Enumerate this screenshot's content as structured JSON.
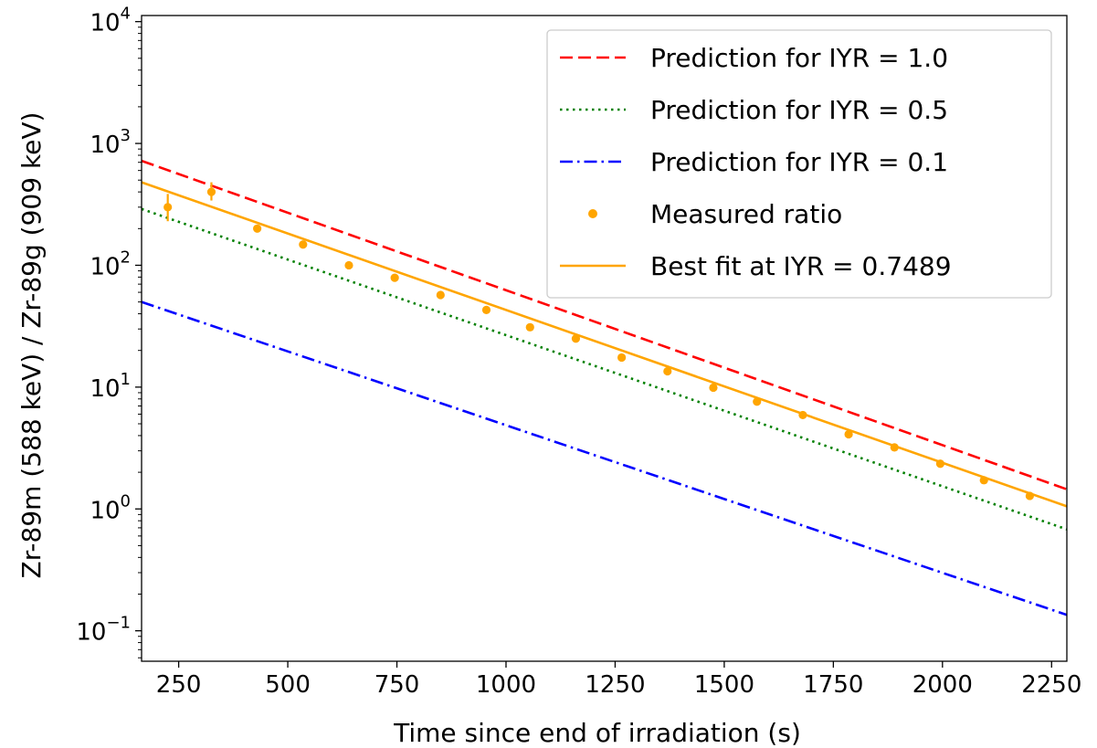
{
  "chart_data": {
    "type": "line",
    "title": "",
    "xlabel": "Time since end of irradiation (s)",
    "ylabel": "Zr-89m (588 keV) / Zr-89g (909 keV)",
    "xlim": [
      165,
      2285
    ],
    "ylim_log10": [
      -1.25,
      4.05
    ],
    "y_scale": "log",
    "x_ticks": [
      250,
      500,
      750,
      1000,
      1250,
      1500,
      1750,
      2000,
      2250
    ],
    "x_tick_labels": [
      "250",
      "500",
      "750",
      "1000",
      "1250",
      "1500",
      "1750",
      "2000",
      "2250"
    ],
    "y_ticks": [
      {
        "value": 0.1,
        "base": "10",
        "exp": "−1"
      },
      {
        "value": 1,
        "base": "10",
        "exp": "0"
      },
      {
        "value": 10,
        "base": "10",
        "exp": "1"
      },
      {
        "value": 100,
        "base": "10",
        "exp": "2"
      },
      {
        "value": 1000,
        "base": "10",
        "exp": "3"
      },
      {
        "value": 10000,
        "base": "10",
        "exp": "4"
      }
    ],
    "legend_position": "top-right",
    "series": [
      {
        "name": "Prediction for IYR = 1.0",
        "kind": "line",
        "style": "dashed",
        "color": "#ff0000",
        "x": [
          165,
          2285
        ],
        "y": [
          720,
          1.45
        ]
      },
      {
        "name": "Prediction for IYR = 0.5",
        "kind": "line",
        "style": "dotted",
        "color": "#008000",
        "x": [
          165,
          2285
        ],
        "y": [
          290,
          0.68
        ]
      },
      {
        "name": "Prediction for IYR = 0.1",
        "kind": "line",
        "style": "dashdot",
        "color": "#0000ff",
        "x": [
          165,
          2285
        ],
        "y": [
          50,
          0.135
        ]
      },
      {
        "name": "Measured ratio",
        "kind": "scatter",
        "color": "#ffa500",
        "x": [
          225,
          325,
          430,
          535,
          640,
          745,
          850,
          955,
          1055,
          1160,
          1265,
          1370,
          1475,
          1575,
          1680,
          1785,
          1890,
          1995,
          2095,
          2200
        ],
        "y": [
          300,
          400,
          200,
          148,
          100,
          79,
          57,
          43,
          31,
          25,
          17.5,
          13.5,
          9.9,
          7.6,
          5.9,
          4.1,
          3.2,
          2.35,
          1.72,
          1.28
        ],
        "err_low": [
          230,
          340,
          null,
          null,
          null,
          null,
          null,
          null,
          null,
          null,
          null,
          null,
          null,
          null,
          null,
          null,
          null,
          null,
          null,
          null
        ],
        "err_high": [
          385,
          480,
          null,
          null,
          null,
          null,
          null,
          null,
          null,
          null,
          null,
          null,
          null,
          null,
          null,
          null,
          null,
          null,
          null,
          null
        ]
      },
      {
        "name": "Best fit at IYR = 0.7489",
        "kind": "line",
        "style": "solid",
        "color": "#ffa500",
        "x": [
          165,
          2285
        ],
        "y": [
          480,
          1.05
        ]
      }
    ]
  }
}
